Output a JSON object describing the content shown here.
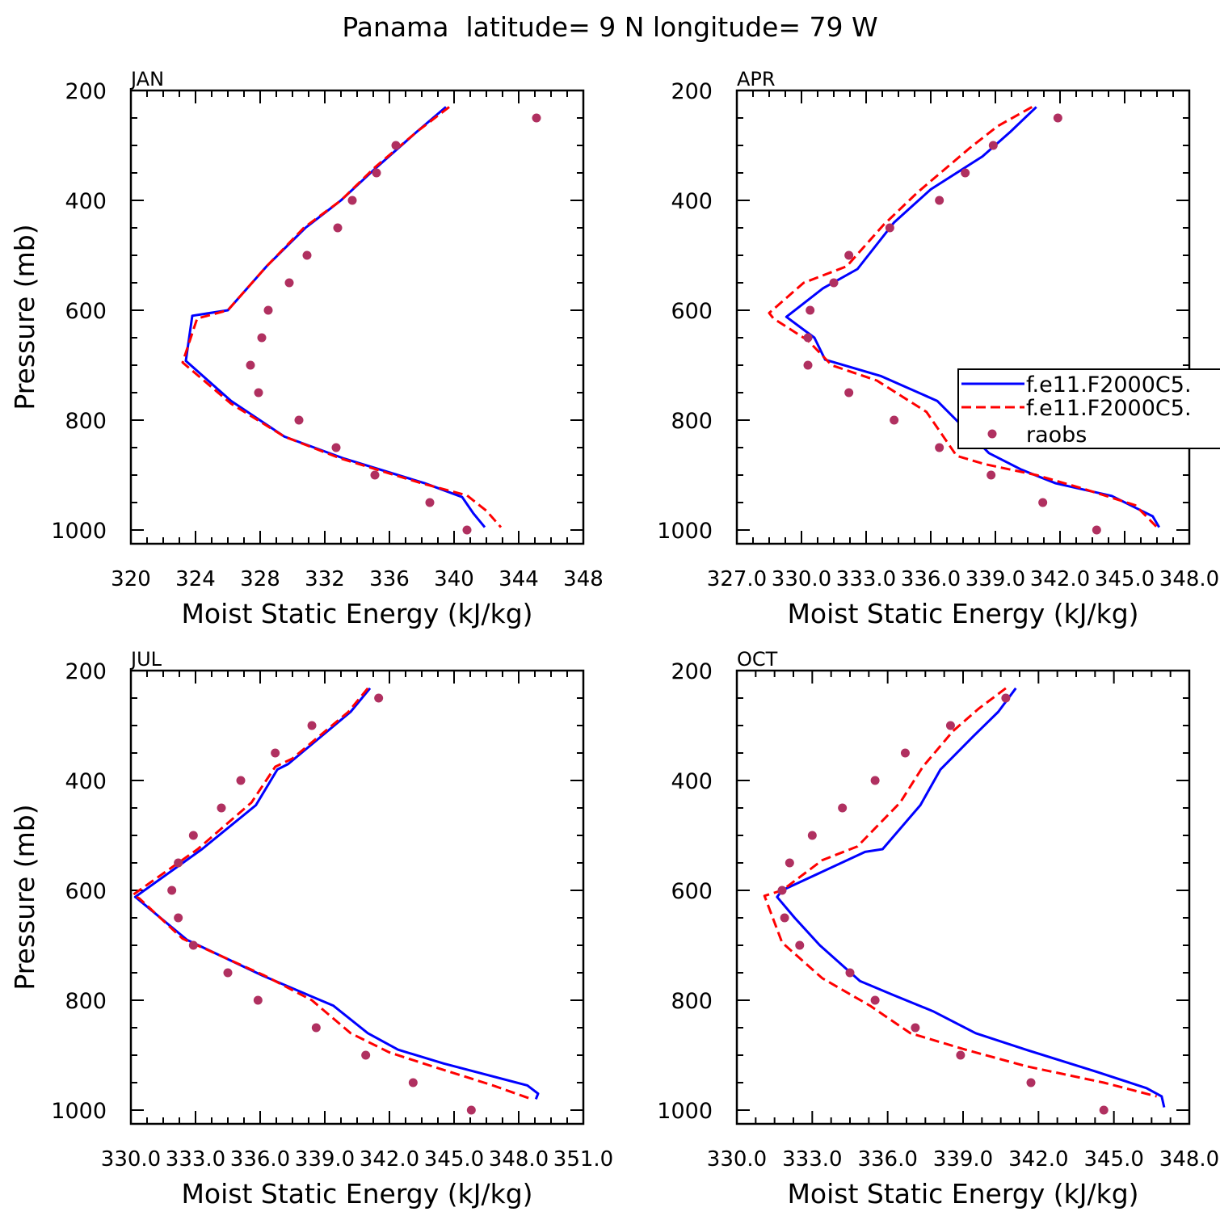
{
  "figure_title": "Panama  latitude= 9 N longitude= 79 W",
  "legend": {
    "entries": [
      {
        "label": "f.e11.F2000C5.",
        "style": "solid",
        "color": "#0000ff"
      },
      {
        "label": "f.e11.F2000C5.",
        "style": "dashed",
        "color": "#ff0000"
      },
      {
        "label": "raobs",
        "style": "marker",
        "color": "#b03060"
      }
    ]
  },
  "chart_data": [
    {
      "type": "line",
      "panel_title": "JAN",
      "xlabel": "Moist Static Energy (kJ/kg)",
      "ylabel": "Pressure (mb)",
      "xlim": [
        320,
        348
      ],
      "ylim": [
        200,
        1000
      ],
      "y_inverted": true,
      "xticks": [
        320,
        324,
        328,
        332,
        336,
        340,
        344,
        348
      ],
      "xticklabels": [
        "320",
        "324",
        "328",
        "332",
        "336",
        "340",
        "344",
        "348"
      ],
      "yticks": [
        200,
        400,
        600,
        800,
        1000
      ],
      "yticklabels": [
        "200",
        "400",
        "600",
        "800",
        "1000"
      ],
      "series": [
        {
          "name": "f.e11.F2000C5.",
          "style": "solid",
          "color": "#0000ff",
          "x": [
            339.5,
            337.7,
            335.2,
            333.0,
            330.8,
            328.4,
            326.0,
            323.8,
            323.4,
            326.2,
            329.5,
            333.2,
            338.2,
            340.5,
            341.2,
            341.9
          ],
          "y": [
            230,
            275,
            340,
            400,
            450,
            520,
            600,
            610,
            692,
            765,
            830,
            870,
            915,
            940,
            970,
            995
          ]
        },
        {
          "name": "f.e11.F2000C5.",
          "style": "dashed",
          "color": "#ff0000",
          "x": [
            339.7,
            337.7,
            335.1,
            333.0,
            330.7,
            328.4,
            326.0,
            324.1,
            323.2,
            326.2,
            329.5,
            333.0,
            338.0,
            340.8,
            342.0,
            342.9
          ],
          "y": [
            230,
            275,
            340,
            400,
            450,
            520,
            600,
            615,
            695,
            770,
            830,
            870,
            915,
            937,
            965,
            995
          ]
        },
        {
          "name": "raobs",
          "style": "marker",
          "color": "#b03060",
          "x": [
            345.1,
            336.4,
            335.2,
            333.7,
            332.8,
            330.9,
            329.8,
            328.5,
            328.1,
            327.4,
            327.9,
            330.4,
            332.7,
            335.1,
            338.5,
            340.8
          ],
          "y": [
            250,
            300,
            350,
            400,
            450,
            500,
            550,
            600,
            650,
            700,
            750,
            800,
            850,
            900,
            950,
            1000
          ]
        }
      ]
    },
    {
      "type": "line",
      "panel_title": "APR",
      "xlabel": "Moist Static Energy (kJ/kg)",
      "ylabel": "",
      "xlim": [
        327.0,
        348.0
      ],
      "ylim": [
        200,
        1000
      ],
      "y_inverted": true,
      "xticks": [
        327,
        330,
        333,
        336,
        339,
        342,
        345,
        348
      ],
      "xticklabels": [
        "327.0",
        "330.0",
        "333.0",
        "336.0",
        "339.0",
        "342.0",
        "345.0",
        "348.0"
      ],
      "yticks": [
        200,
        400,
        600,
        800,
        1000
      ],
      "yticklabels": [
        "200",
        "400",
        "600",
        "800",
        "1000"
      ],
      "series": [
        {
          "name": "f.e11.F2000C5.",
          "style": "solid",
          "color": "#0000ff",
          "x": [
            340.9,
            339.7,
            338.4,
            336.0,
            334.3,
            332.6,
            331.0,
            329.3,
            330.6,
            331.1,
            333.7,
            336.3,
            337.7,
            338.7,
            340.2,
            341.8,
            344.4,
            346.3,
            346.6
          ],
          "y": [
            230,
            275,
            320,
            380,
            440,
            525,
            560,
            612,
            650,
            690,
            720,
            765,
            820,
            860,
            890,
            915,
            938,
            975,
            995
          ]
        },
        {
          "name": "f.e11.F2000C5.",
          "style": "dashed",
          "color": "#ff0000",
          "x": [
            340.7,
            339.1,
            337.8,
            335.4,
            333.8,
            332.1,
            330.1,
            328.5,
            328.7,
            330.3,
            331.4,
            333.5,
            335.8,
            337.2,
            338.5,
            340.9,
            343.1,
            345.5,
            346.5
          ],
          "y": [
            230,
            265,
            305,
            385,
            445,
            520,
            550,
            605,
            615,
            655,
            700,
            728,
            785,
            865,
            880,
            900,
            925,
            955,
            995
          ]
        },
        {
          "name": "raobs",
          "style": "marker",
          "color": "#b03060",
          "x": [
            341.9,
            338.9,
            337.6,
            336.4,
            334.1,
            332.2,
            331.5,
            330.4,
            330.3,
            330.3,
            332.2,
            334.3,
            336.4,
            338.8,
            341.2,
            343.7
          ],
          "y": [
            250,
            300,
            350,
            400,
            450,
            500,
            550,
            600,
            650,
            700,
            750,
            800,
            850,
            900,
            950,
            1000
          ]
        }
      ]
    },
    {
      "type": "line",
      "panel_title": "JUL",
      "xlabel": "Moist Static Energy (kJ/kg)",
      "ylabel": "Pressure (mb)",
      "xlim": [
        330.0,
        351.0
      ],
      "ylim": [
        200,
        1000
      ],
      "y_inverted": true,
      "xticks": [
        330,
        333,
        336,
        339,
        342,
        345,
        348,
        351
      ],
      "xticklabels": [
        "330.0",
        "333.0",
        "336.0",
        "339.0",
        "342.0",
        "345.0",
        "348.0",
        "351.0"
      ],
      "yticks": [
        200,
        400,
        600,
        800,
        1000
      ],
      "yticklabels": [
        "200",
        "400",
        "600",
        "800",
        "1000"
      ],
      "series": [
        {
          "name": "f.e11.F2000C5.",
          "style": "solid",
          "color": "#0000ff",
          "x": [
            341.1,
            340.2,
            337.3,
            336.8,
            335.8,
            333.3,
            330.2,
            330.3,
            332.6,
            336.1,
            339.4,
            341.0,
            342.4,
            344.5,
            348.4,
            348.9,
            348.8
          ],
          "y": [
            232,
            275,
            370,
            380,
            445,
            525,
            612,
            615,
            690,
            755,
            810,
            860,
            890,
            915,
            955,
            970,
            980
          ]
        },
        {
          "name": "f.e11.F2000C5.",
          "style": "dashed",
          "color": "#ff0000",
          "x": [
            341.0,
            340.1,
            337.5,
            336.7,
            335.6,
            333.1,
            330.1,
            330.4,
            332.4,
            336.2,
            338.4,
            340.2,
            342.0,
            343.8,
            346.8,
            348.6
          ],
          "y": [
            232,
            275,
            360,
            375,
            440,
            525,
            608,
            615,
            688,
            755,
            800,
            860,
            895,
            918,
            955,
            980
          ]
        },
        {
          "name": "raobs",
          "style": "marker",
          "color": "#b03060",
          "x": [
            341.5,
            338.4,
            336.7,
            335.1,
            334.2,
            332.9,
            332.2,
            331.9,
            332.2,
            332.9,
            334.5,
            335.9,
            338.6,
            340.9,
            343.1,
            345.8
          ],
          "y": [
            250,
            300,
            350,
            400,
            450,
            500,
            550,
            600,
            650,
            700,
            750,
            800,
            850,
            900,
            950,
            1000
          ]
        }
      ]
    },
    {
      "type": "line",
      "panel_title": "OCT",
      "xlabel": "Moist Static Energy (kJ/kg)",
      "ylabel": "",
      "xlim": [
        330.0,
        348.0
      ],
      "ylim": [
        200,
        1000
      ],
      "y_inverted": true,
      "xticks": [
        330,
        333,
        336,
        339,
        342,
        345,
        348
      ],
      "xticklabels": [
        "330.0",
        "333.0",
        "336.0",
        "339.0",
        "342.0",
        "345.0",
        "348.0"
      ],
      "yticks": [
        200,
        400,
        600,
        800,
        1000
      ],
      "yticklabels": [
        "200",
        "400",
        "600",
        "800",
        "1000"
      ],
      "series": [
        {
          "name": "f.e11.F2000C5.",
          "style": "solid",
          "color": "#0000ff",
          "x": [
            341.1,
            340.4,
            339.4,
            338.1,
            337.3,
            335.8,
            335.1,
            331.8,
            331.6,
            332.3,
            333.3,
            334.9,
            336.2,
            337.8,
            339.5,
            341.5,
            344.3,
            346.3,
            346.9,
            347.0
          ],
          "y": [
            232,
            275,
            320,
            380,
            445,
            525,
            530,
            600,
            612,
            650,
            700,
            765,
            790,
            820,
            860,
            890,
            930,
            960,
            975,
            995
          ]
        },
        {
          "name": "f.e11.F2000C5.",
          "style": "dashed",
          "color": "#ff0000",
          "x": [
            340.7,
            339.6,
            338.6,
            337.4,
            336.5,
            334.8,
            333.4,
            331.8,
            331.1,
            331.8,
            333.4,
            335.3,
            336.9,
            339.1,
            341.5,
            344.6,
            346.7
          ],
          "y": [
            232,
            270,
            310,
            375,
            440,
            520,
            545,
            600,
            610,
            695,
            760,
            810,
            860,
            890,
            920,
            950,
            975
          ]
        },
        {
          "name": "raobs",
          "style": "marker",
          "color": "#b03060",
          "x": [
            340.7,
            338.5,
            336.7,
            335.5,
            334.2,
            333.0,
            332.1,
            331.8,
            331.9,
            332.5,
            334.5,
            335.5,
            337.1,
            338.9,
            341.7,
            344.6
          ],
          "y": [
            250,
            300,
            350,
            400,
            450,
            500,
            550,
            600,
            650,
            700,
            750,
            800,
            850,
            900,
            950,
            1000
          ]
        }
      ]
    }
  ]
}
